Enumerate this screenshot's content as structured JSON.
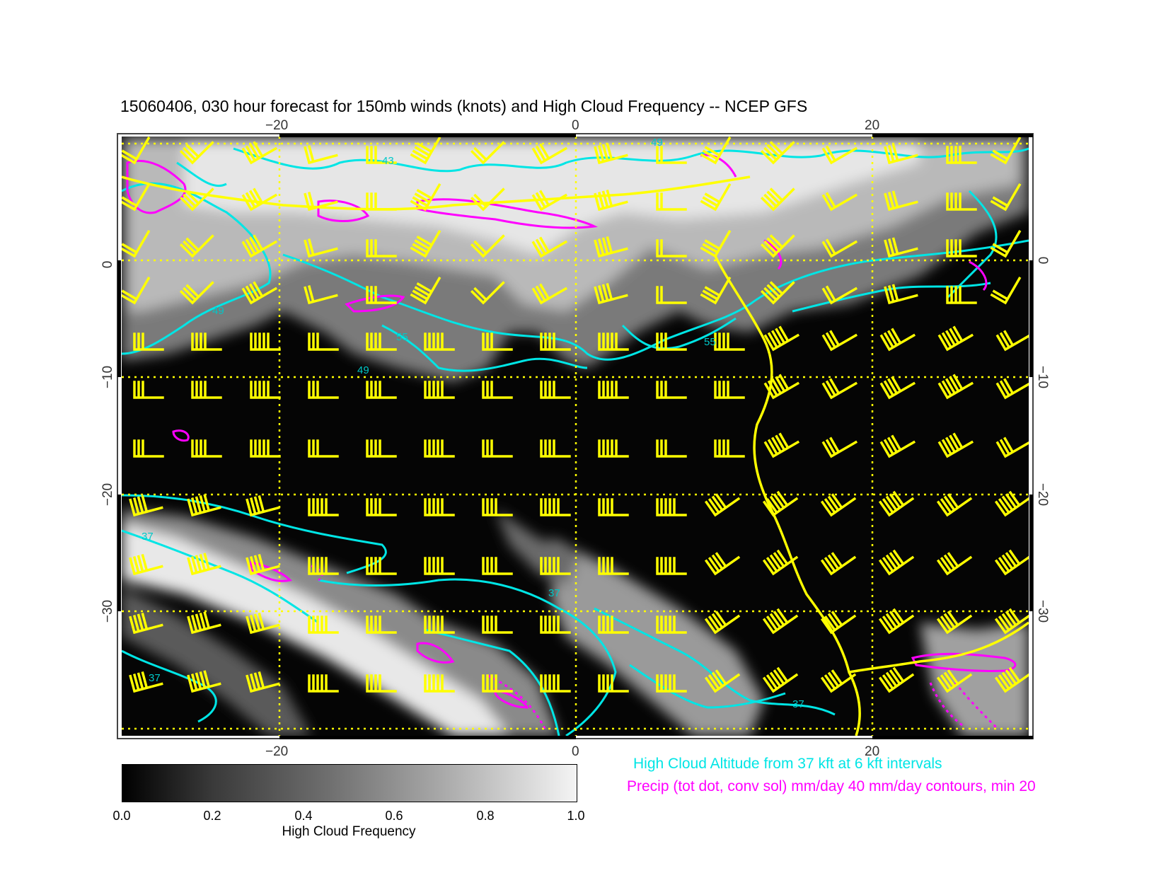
{
  "title": "15060406, 030 hour forecast for 150mb winds (knots) and High Cloud Frequency -- NCEP GFS",
  "map": {
    "lon_ticks": [
      "−20",
      "0",
      "20"
    ],
    "lat_ticks": [
      "0",
      "−10",
      "−20",
      "−30"
    ],
    "lat_ticks_right": [
      "0",
      "−10",
      "−20",
      "−30"
    ],
    "cloud_altitude_labels": [
      "37",
      "43",
      "49",
      "55"
    ],
    "colors": {
      "cloud_altitude_contour": "#00e5e5",
      "precip_contour": "#ff00ff",
      "wind_barb": "#ffff00",
      "grid": "#ffff00",
      "coastline": "#ffff00"
    }
  },
  "legend": {
    "cloud_altitude": "High Cloud Altitude from 37 kft at 6 kft intervals",
    "precip": "Precip (tot dot, conv sol) mm/day 40 mm/day contours, min 20"
  },
  "colorbar": {
    "ticks": [
      "0.0",
      "0.2",
      "0.4",
      "0.6",
      "0.8",
      "1.0"
    ],
    "label": "High Cloud Frequency",
    "range": [
      0.0,
      1.0
    ]
  },
  "chart_data": {
    "type": "heatmap",
    "variable": "High Cloud Frequency",
    "lon_range": [
      -31,
      31
    ],
    "lat_range": [
      -40,
      10
    ],
    "value_range": [
      0.0,
      1.0
    ]
  }
}
